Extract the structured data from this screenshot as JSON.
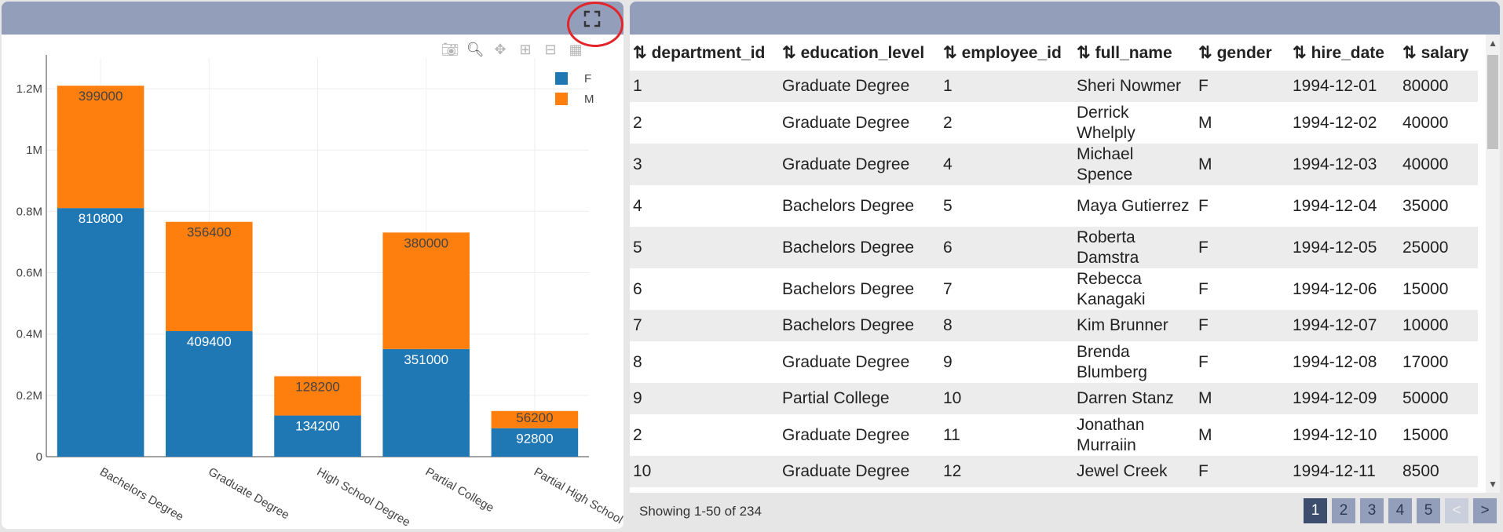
{
  "chart": {
    "modebar": [
      "camera-icon",
      "zoom-icon",
      "pan-icon",
      "zoom-in-icon",
      "zoom-out-icon",
      "autoscale-icon"
    ]
  },
  "chart_data": {
    "type": "bar",
    "stacked": true,
    "categories": [
      "Bachelors Degree",
      "Graduate Degree",
      "High School Degree",
      "Partial College",
      "Partial High School"
    ],
    "series": [
      {
        "name": "F",
        "color": "#1f77b4",
        "values": [
          810800,
          409400,
          134200,
          351000,
          92800
        ],
        "labels": [
          "810800",
          "409400",
          "134200",
          "351000",
          "92800"
        ]
      },
      {
        "name": "M",
        "color": "#ff7f0e",
        "values": [
          399000,
          356400,
          128200,
          380000,
          56200
        ],
        "labels": [
          "399000",
          "356400",
          "128200",
          "380000",
          "56200"
        ]
      }
    ],
    "ylim": [
      0,
      1300000
    ],
    "yticks": [
      "0",
      "0.2M",
      "0.4M",
      "0.6M",
      "0.8M",
      "1M",
      "1.2M"
    ],
    "ytick_values": [
      0,
      200000,
      400000,
      600000,
      800000,
      1000000,
      1200000
    ],
    "legend_position": "top-right",
    "grid": true
  },
  "table": {
    "columns": [
      "department_id",
      "education_level",
      "employee_id",
      "full_name",
      "gender",
      "hire_date",
      "salary"
    ],
    "sort_icon": "⇅",
    "rows": [
      [
        "1",
        "Graduate Degree",
        "1",
        "Sheri Nowmer",
        "F",
        "1994-12-01",
        "80000"
      ],
      [
        "2",
        "Graduate Degree",
        "2",
        "Derrick Whelply",
        "M",
        "1994-12-02",
        "40000"
      ],
      [
        "3",
        "Graduate Degree",
        "4",
        "Michael Spence",
        "M",
        "1994-12-03",
        "40000"
      ],
      [
        "4",
        "Bachelors Degree",
        "5",
        "Maya Gutierrez",
        "F",
        "1994-12-04",
        "35000"
      ],
      [
        "5",
        "Bachelors Degree",
        "6",
        "Roberta Damstra",
        "F",
        "1994-12-05",
        "25000"
      ],
      [
        "6",
        "Bachelors Degree",
        "7",
        "Rebecca Kanagaki",
        "F",
        "1994-12-06",
        "15000"
      ],
      [
        "7",
        "Bachelors Degree",
        "8",
        "Kim Brunner",
        "F",
        "1994-12-07",
        "10000"
      ],
      [
        "8",
        "Graduate Degree",
        "9",
        "Brenda Blumberg",
        "F",
        "1994-12-08",
        "17000"
      ],
      [
        "9",
        "Partial College",
        "10",
        "Darren Stanz",
        "M",
        "1994-12-09",
        "50000"
      ],
      [
        "2",
        "Graduate Degree",
        "11",
        "Jonathan Murraiin",
        "M",
        "1994-12-10",
        "15000"
      ],
      [
        "10",
        "Graduate Degree",
        "12",
        "Jewel Creek",
        "F",
        "1994-12-11",
        "8500"
      ]
    ],
    "footer_text": "Showing 1-50 of 234",
    "pages": [
      "1",
      "2",
      "3",
      "4",
      "5"
    ],
    "prev_label": "<",
    "next_label": ">"
  }
}
